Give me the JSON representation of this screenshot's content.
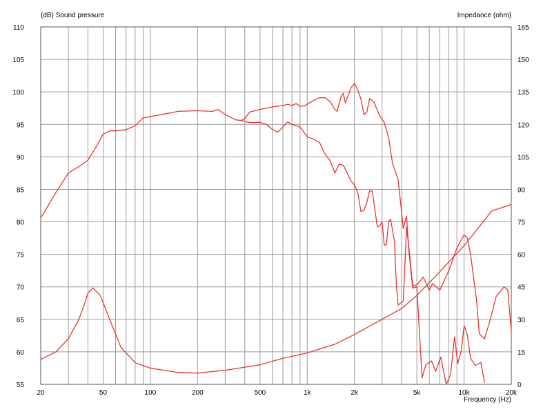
{
  "chart_data": {
    "type": "line",
    "left_axis_title": "(dB)  Sound pressure",
    "right_axis_title": "Impedance  (ohm)",
    "xlabel": "Frequency  (Hz)",
    "x_scale": "log",
    "xlim": [
      20,
      20000
    ],
    "x_tick_labels": [
      {
        "value": 20,
        "label": "20"
      },
      {
        "value": 50,
        "label": "50"
      },
      {
        "value": 100,
        "label": "100"
      },
      {
        "value": 200,
        "label": "200"
      },
      {
        "value": 500,
        "label": "500"
      },
      {
        "value": 1000,
        "label": "1k"
      },
      {
        "value": 2000,
        "label": "2k"
      },
      {
        "value": 5000,
        "label": "5k"
      },
      {
        "value": 10000,
        "label": "10k"
      },
      {
        "value": 20000,
        "label": "20k"
      }
    ],
    "ylim_left": [
      55,
      110
    ],
    "y_left_ticks": [
      55,
      60,
      65,
      70,
      75,
      80,
      85,
      90,
      95,
      100,
      105,
      110
    ],
    "ylim_right": [
      0,
      165
    ],
    "y_right_ticks": [
      0,
      15,
      30,
      45,
      60,
      75,
      90,
      105,
      120,
      135,
      150,
      165
    ],
    "grid": true,
    "line_color": "#e8332b",
    "series": [
      {
        "axis": "left",
        "points": [
          [
            20,
            80.6
          ],
          [
            25,
            84.5
          ],
          [
            30,
            87.5
          ],
          [
            35,
            88.5
          ],
          [
            40,
            89.5
          ],
          [
            45,
            91.5
          ],
          [
            50,
            93.5
          ],
          [
            55,
            94
          ],
          [
            60,
            94
          ],
          [
            70,
            94.2
          ],
          [
            80,
            94.8
          ],
          [
            90,
            96
          ],
          [
            100,
            96.2
          ],
          [
            130,
            96.7
          ],
          [
            150,
            97
          ],
          [
            200,
            97.1
          ],
          [
            250,
            97
          ],
          [
            270,
            97.3
          ],
          [
            300,
            96.5
          ],
          [
            350,
            95.7
          ],
          [
            380,
            95.6
          ],
          [
            400,
            95.9
          ],
          [
            430,
            96.9
          ],
          [
            500,
            97.3
          ],
          [
            550,
            97.5
          ],
          [
            600,
            97.7
          ],
          [
            650,
            97.8
          ],
          [
            700,
            97.9
          ],
          [
            750,
            98.1
          ],
          [
            800,
            97.9
          ],
          [
            850,
            98.2
          ],
          [
            900,
            97.8
          ],
          [
            950,
            97.8
          ],
          [
            1000,
            98.1
          ],
          [
            1100,
            98.7
          ],
          [
            1200,
            99.1
          ],
          [
            1300,
            99.1
          ],
          [
            1400,
            98.5
          ],
          [
            1500,
            97.3
          ],
          [
            1550,
            97.0
          ],
          [
            1650,
            99.4
          ],
          [
            1700,
            99.8
          ],
          [
            1750,
            98.3
          ],
          [
            1800,
            99.1
          ],
          [
            1900,
            100.6
          ],
          [
            2000,
            101.3
          ],
          [
            2100,
            100.3
          ],
          [
            2200,
            98.9
          ],
          [
            2300,
            96.5
          ],
          [
            2400,
            96.9
          ],
          [
            2500,
            99.0
          ],
          [
            2650,
            98.5
          ],
          [
            2900,
            96.3
          ],
          [
            3100,
            95.3
          ],
          [
            3300,
            93.0
          ],
          [
            3500,
            89.0
          ],
          [
            3800,
            86.5
          ],
          [
            4100,
            79.0
          ],
          [
            4300,
            80.9
          ],
          [
            4450,
            75.5
          ],
          [
            4700,
            69.8
          ],
          [
            5000,
            70.0
          ],
          [
            5400,
            56.0
          ],
          [
            5700,
            58.0
          ],
          [
            6200,
            58.6
          ],
          [
            6600,
            57.0
          ],
          [
            7100,
            59.2
          ],
          [
            7700,
            55.0
          ],
          [
            8200,
            56.5
          ],
          [
            8700,
            62.3
          ],
          [
            9100,
            58.2
          ],
          [
            9600,
            60.2
          ],
          [
            10000,
            64.0
          ],
          [
            10500,
            62.6
          ],
          [
            11000,
            59.0
          ],
          [
            11800,
            57.9
          ],
          [
            12800,
            58.4
          ],
          [
            13500,
            55.2
          ]
        ]
      },
      {
        "axis": "left",
        "points": [
          [
            380,
            95.6
          ],
          [
            420,
            95.3
          ],
          [
            500,
            95.3
          ],
          [
            550,
            95.0
          ],
          [
            600,
            94.2
          ],
          [
            650,
            93.8
          ],
          [
            700,
            94.6
          ],
          [
            750,
            95.4
          ],
          [
            800,
            95.0
          ],
          [
            900,
            94.6
          ],
          [
            1000,
            93.1
          ],
          [
            1100,
            92.7
          ],
          [
            1200,
            92.2
          ],
          [
            1300,
            90.4
          ],
          [
            1400,
            89.4
          ],
          [
            1500,
            87.5
          ],
          [
            1600,
            88.9
          ],
          [
            1700,
            88.7
          ],
          [
            1800,
            87.5
          ],
          [
            1900,
            86.3
          ],
          [
            2000,
            85.7
          ],
          [
            2100,
            84.5
          ],
          [
            2200,
            81.6
          ],
          [
            2300,
            81.8
          ],
          [
            2400,
            83.0
          ],
          [
            2500,
            84.8
          ],
          [
            2600,
            84.7
          ],
          [
            2800,
            79.2
          ],
          [
            2900,
            79.4
          ],
          [
            3000,
            80.0
          ],
          [
            3100,
            76.4
          ],
          [
            3200,
            76.5
          ],
          [
            3300,
            80.0
          ],
          [
            3400,
            80.4
          ],
          [
            3600,
            77.0
          ],
          [
            3700,
            70.3
          ],
          [
            3800,
            67.2
          ],
          [
            4100,
            67.8
          ],
          [
            4300,
            79.2
          ],
          [
            4500,
            75.0
          ],
          [
            4700,
            70.2
          ],
          [
            5000,
            70.3
          ],
          [
            5500,
            71.5
          ],
          [
            6000,
            69.5
          ],
          [
            6300,
            70.5
          ],
          [
            7000,
            69.5
          ],
          [
            8000,
            72.5
          ],
          [
            9000,
            76.0
          ],
          [
            10000,
            78.0
          ],
          [
            10500,
            77.5
          ],
          [
            11000,
            75.0
          ],
          [
            12000,
            68.0
          ],
          [
            12500,
            62.8
          ],
          [
            13500,
            62.0
          ],
          [
            14500,
            64.5
          ],
          [
            16000,
            68.5
          ],
          [
            17000,
            69.3
          ],
          [
            18000,
            70.0
          ],
          [
            19000,
            69.5
          ],
          [
            20000,
            63.2
          ]
        ]
      },
      {
        "axis": "right",
        "points": [
          [
            20,
            11.5
          ],
          [
            25,
            15
          ],
          [
            30,
            21
          ],
          [
            35,
            30
          ],
          [
            38,
            37
          ],
          [
            40,
            42
          ],
          [
            43,
            44.5
          ],
          [
            48,
            41
          ],
          [
            55,
            30
          ],
          [
            65,
            17
          ],
          [
            80,
            10
          ],
          [
            100,
            7.5
          ],
          [
            150,
            5.5
          ],
          [
            200,
            5.2
          ],
          [
            300,
            6.5
          ],
          [
            500,
            9
          ],
          [
            700,
            12
          ],
          [
            1000,
            14.5
          ],
          [
            1500,
            18.5
          ],
          [
            2000,
            23
          ],
          [
            3000,
            30
          ],
          [
            4000,
            35
          ],
          [
            5000,
            41
          ],
          [
            7000,
            52
          ],
          [
            10000,
            64
          ],
          [
            15000,
            80
          ],
          [
            20000,
            83
          ]
        ]
      }
    ]
  }
}
